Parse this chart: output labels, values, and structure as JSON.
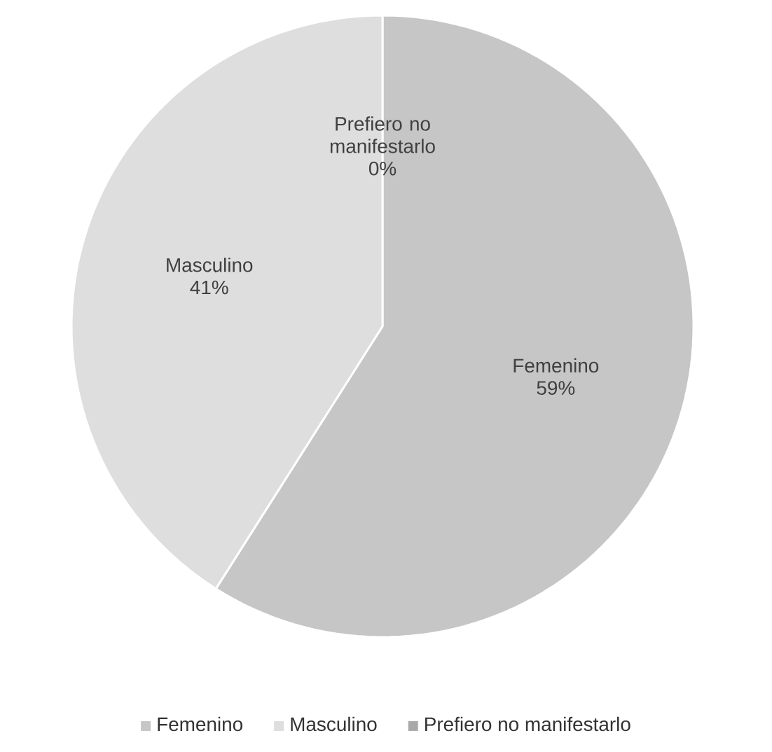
{
  "chart_data": {
    "type": "pie",
    "categories": [
      "Femenino",
      "Masculino",
      "Prefiero no manifestarlo"
    ],
    "values": [
      59,
      41,
      0
    ],
    "value_labels": [
      "59%",
      "41%",
      "0%"
    ],
    "colors": [
      "#c6c6c6",
      "#dedede",
      "#a9a9a9"
    ],
    "legend": "bottom"
  }
}
